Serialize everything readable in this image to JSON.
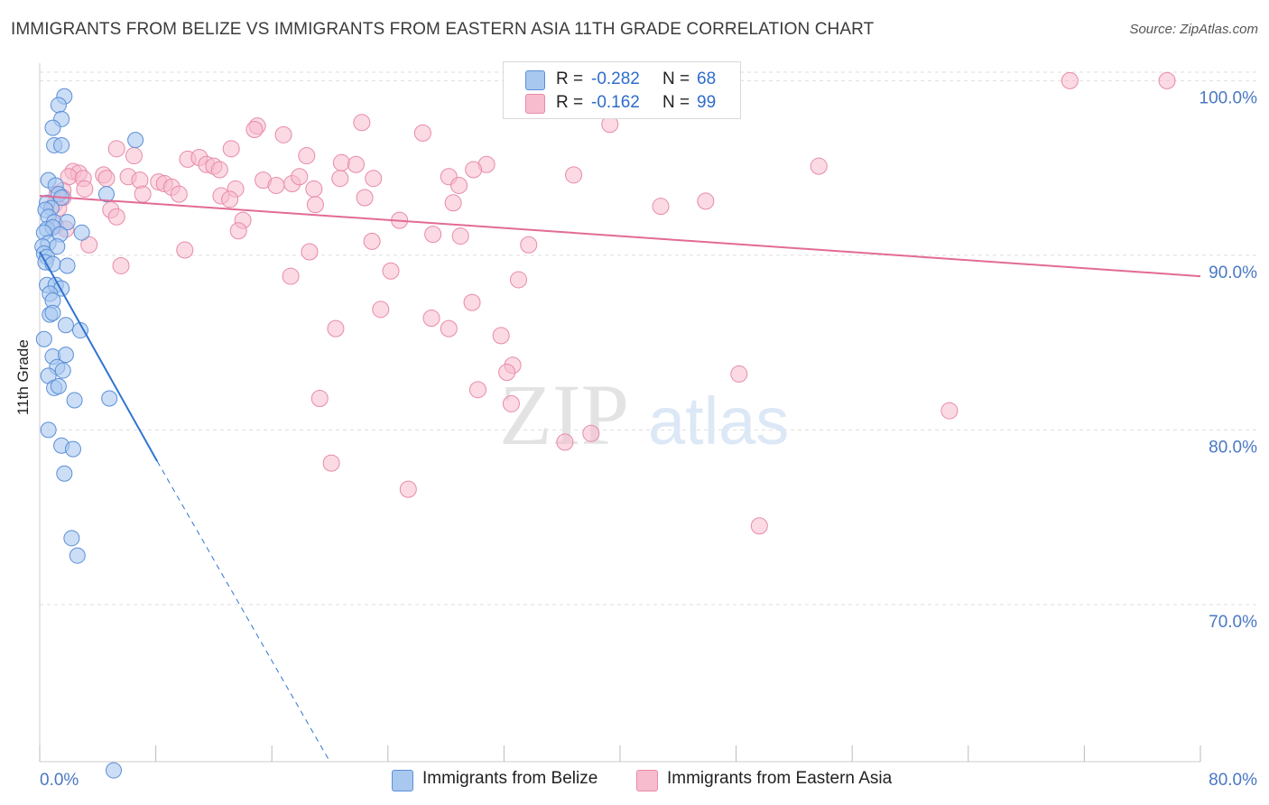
{
  "header": {
    "title": "IMMIGRANTS FROM BELIZE VS IMMIGRANTS FROM EASTERN ASIA 11TH GRADE CORRELATION CHART",
    "source": "Source: ZipAtlas.com"
  },
  "watermark": {
    "zip": "ZIP",
    "atlas": "atlas"
  },
  "stats": {
    "belize": {
      "r_label": "R =",
      "r_value": "-0.282",
      "n_label": "N =",
      "n_value": "68"
    },
    "eastern_asia": {
      "r_label": "R =",
      "r_value": "-0.162",
      "n_label": "N =",
      "n_value": "99"
    }
  },
  "legend": {
    "belize": "Immigrants from Belize",
    "eastern_asia": "Immigrants from Eastern Asia"
  },
  "colors": {
    "belize_fill": "#a9c8f0",
    "belize_stroke": "#5b8fd8",
    "belize_line": "#2f74d0",
    "eastern_asia_fill": "#f7bccd",
    "eastern_asia_stroke": "#e88aa8",
    "eastern_asia_line": "#e26b95",
    "tick_label": "#4a78c4",
    "grid": "#dddddd"
  },
  "chart_data": {
    "type": "scatter",
    "title": "IMMIGRANTS FROM BELIZE VS IMMIGRANTS FROM EASTERN ASIA 11TH GRADE CORRELATION CHART",
    "xlabel": "",
    "ylabel": "11th Grade",
    "xlim": [
      0,
      80
    ],
    "ylim": [
      61,
      101
    ],
    "x_tick_labels": [
      "0.0%",
      "80.0%"
    ],
    "y_ticks": [
      70,
      80,
      90,
      100
    ],
    "y_tick_labels": [
      "70.0%",
      "80.0%",
      "90.0%",
      "100.0%"
    ],
    "grid": "horizontal dashed",
    "legend_position": "bottom-center",
    "series": [
      {
        "name": "Immigrants from Belize",
        "r": -0.282,
        "n": 68,
        "trend": {
          "x": [
            0,
            8.1
          ],
          "y": [
            90.2,
            78.2
          ],
          "dashed_extension": {
            "x": [
              8.1,
              20
            ],
            "y": [
              78.2,
              61
            ]
          }
        },
        "points": [
          [
            1.7,
            99.1
          ],
          [
            1.3,
            98.6
          ],
          [
            1.5,
            97.8
          ],
          [
            0.9,
            97.3
          ],
          [
            6.6,
            96.6
          ],
          [
            1.0,
            96.3
          ],
          [
            1.5,
            96.3
          ],
          [
            0.6,
            94.3
          ],
          [
            1.1,
            94.0
          ],
          [
            4.6,
            93.5
          ],
          [
            1.3,
            93.5
          ],
          [
            1.5,
            93.3
          ],
          [
            0.5,
            93.0
          ],
          [
            0.8,
            92.7
          ],
          [
            0.4,
            92.6
          ],
          [
            0.6,
            92.2
          ],
          [
            1.0,
            91.9
          ],
          [
            1.9,
            91.9
          ],
          [
            0.5,
            91.5
          ],
          [
            0.9,
            91.6
          ],
          [
            0.3,
            91.3
          ],
          [
            1.4,
            91.2
          ],
          [
            2.9,
            91.3
          ],
          [
            0.6,
            90.7
          ],
          [
            0.2,
            90.5
          ],
          [
            1.2,
            90.5
          ],
          [
            0.3,
            90.1
          ],
          [
            0.5,
            89.9
          ],
          [
            0.4,
            89.6
          ],
          [
            0.9,
            89.5
          ],
          [
            1.9,
            89.4
          ],
          [
            0.5,
            88.3
          ],
          [
            1.1,
            88.3
          ],
          [
            1.5,
            88.1
          ],
          [
            0.7,
            87.8
          ],
          [
            0.9,
            87.4
          ],
          [
            0.7,
            86.6
          ],
          [
            0.9,
            86.7
          ],
          [
            1.8,
            86.0
          ],
          [
            2.8,
            85.7
          ],
          [
            0.3,
            85.2
          ],
          [
            0.9,
            84.2
          ],
          [
            1.8,
            84.3
          ],
          [
            1.2,
            83.6
          ],
          [
            1.6,
            83.4
          ],
          [
            0.6,
            83.1
          ],
          [
            1.0,
            82.4
          ],
          [
            1.3,
            82.5
          ],
          [
            2.4,
            81.7
          ],
          [
            4.8,
            81.8
          ],
          [
            0.6,
            80.0
          ],
          [
            1.5,
            79.1
          ],
          [
            2.3,
            78.9
          ],
          [
            1.7,
            77.5
          ],
          [
            2.2,
            73.8
          ],
          [
            2.6,
            72.8
          ],
          [
            5.1,
            60.5
          ]
        ]
      },
      {
        "name": "Immigrants from Eastern Asia",
        "r": -0.162,
        "n": 99,
        "trend": {
          "x": [
            0,
            80
          ],
          "y": [
            93.4,
            88.8
          ]
        },
        "points": [
          [
            38.1,
            100.0
          ],
          [
            43.6,
            100.0
          ],
          [
            71.0,
            100.0
          ],
          [
            77.7,
            100.0
          ],
          [
            39.3,
            97.5
          ],
          [
            22.2,
            97.6
          ],
          [
            15.0,
            97.4
          ],
          [
            14.8,
            97.2
          ],
          [
            26.4,
            97.0
          ],
          [
            16.8,
            96.9
          ],
          [
            5.3,
            96.1
          ],
          [
            13.2,
            96.1
          ],
          [
            6.5,
            95.7
          ],
          [
            18.4,
            95.7
          ],
          [
            10.2,
            95.5
          ],
          [
            11.0,
            95.6
          ],
          [
            11.5,
            95.2
          ],
          [
            12.0,
            95.1
          ],
          [
            20.8,
            95.3
          ],
          [
            21.8,
            95.2
          ],
          [
            30.8,
            95.2
          ],
          [
            12.4,
            94.9
          ],
          [
            29.9,
            94.9
          ],
          [
            53.7,
            95.1
          ],
          [
            2.3,
            94.8
          ],
          [
            2.7,
            94.7
          ],
          [
            4.4,
            94.6
          ],
          [
            2.0,
            94.5
          ],
          [
            36.8,
            94.6
          ],
          [
            3.0,
            94.4
          ],
          [
            4.6,
            94.4
          ],
          [
            6.1,
            94.5
          ],
          [
            6.9,
            94.3
          ],
          [
            8.2,
            94.2
          ],
          [
            8.6,
            94.1
          ],
          [
            20.7,
            94.4
          ],
          [
            23.0,
            94.4
          ],
          [
            28.2,
            94.5
          ],
          [
            15.4,
            94.3
          ],
          [
            16.3,
            94.0
          ],
          [
            17.4,
            94.1
          ],
          [
            17.9,
            94.5
          ],
          [
            9.1,
            93.9
          ],
          [
            28.9,
            94.0
          ],
          [
            1.6,
            93.7
          ],
          [
            3.1,
            93.8
          ],
          [
            13.5,
            93.8
          ],
          [
            18.9,
            93.8
          ],
          [
            1.2,
            93.5
          ],
          [
            7.1,
            93.5
          ],
          [
            9.6,
            93.5
          ],
          [
            12.5,
            93.4
          ],
          [
            22.4,
            93.3
          ],
          [
            1.6,
            93.3
          ],
          [
            1.0,
            92.9
          ],
          [
            13.1,
            93.2
          ],
          [
            1.3,
            92.7
          ],
          [
            4.9,
            92.6
          ],
          [
            19.0,
            92.9
          ],
          [
            28.5,
            93.0
          ],
          [
            42.8,
            92.8
          ],
          [
            45.9,
            93.1
          ],
          [
            5.3,
            92.2
          ],
          [
            14.0,
            92.0
          ],
          [
            24.8,
            92.0
          ],
          [
            1.1,
            91.7
          ],
          [
            1.8,
            91.5
          ],
          [
            13.7,
            91.4
          ],
          [
            27.1,
            91.2
          ],
          [
            29.0,
            91.1
          ],
          [
            22.9,
            90.8
          ],
          [
            33.7,
            90.6
          ],
          [
            3.4,
            90.6
          ],
          [
            10.0,
            90.3
          ],
          [
            18.6,
            90.2
          ],
          [
            5.6,
            89.4
          ],
          [
            24.2,
            89.1
          ],
          [
            17.3,
            88.8
          ],
          [
            33.0,
            88.6
          ],
          [
            29.8,
            87.3
          ],
          [
            23.5,
            86.9
          ],
          [
            27.0,
            86.4
          ],
          [
            28.2,
            85.8
          ],
          [
            20.4,
            85.8
          ],
          [
            31.8,
            85.4
          ],
          [
            32.6,
            83.7
          ],
          [
            32.2,
            83.3
          ],
          [
            48.2,
            83.2
          ],
          [
            30.2,
            82.3
          ],
          [
            19.3,
            81.8
          ],
          [
            32.5,
            81.5
          ],
          [
            62.7,
            81.1
          ],
          [
            38.0,
            79.8
          ],
          [
            36.2,
            79.3
          ],
          [
            20.1,
            78.1
          ],
          [
            25.4,
            76.6
          ],
          [
            49.6,
            74.5
          ]
        ]
      }
    ]
  }
}
